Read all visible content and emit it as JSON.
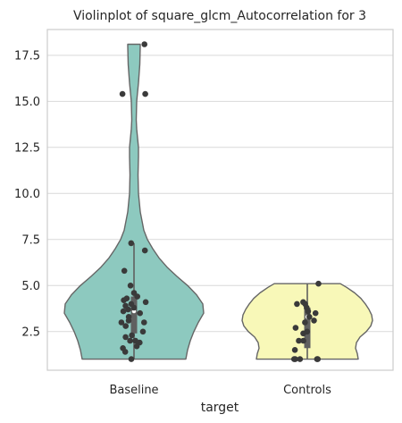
{
  "chart_data": {
    "type": "violin",
    "title": "Violinplot of square_glcm_Autocorrelation for 3",
    "xlabel": "target",
    "ylabel": "",
    "categories": [
      "Baseline",
      "Controls"
    ],
    "ylim": [
      0.4,
      18.9
    ],
    "yticks": [
      2.5,
      5.0,
      7.5,
      10.0,
      12.5,
      15.0,
      17.5
    ],
    "ytick_labels": [
      "2.5",
      "5.0",
      "7.5",
      "10.0",
      "12.5",
      "15.0",
      "17.5"
    ],
    "grid": true,
    "colors": {
      "Baseline": "#8dc9bf",
      "Controls": "#f8f8b8",
      "points": "#3a3a3a",
      "outline": "#666666"
    },
    "series": [
      {
        "name": "Baseline",
        "box": {
          "min": 1.0,
          "q1": 2.4,
          "median": 3.6,
          "q3": 4.4,
          "max": 7.3
        },
        "density": [
          [
            1.0,
            58
          ],
          [
            1.5,
            60
          ],
          [
            2.0,
            63
          ],
          [
            2.5,
            67
          ],
          [
            3.0,
            72
          ],
          [
            3.5,
            78
          ],
          [
            4.0,
            77
          ],
          [
            4.5,
            70
          ],
          [
            5.0,
            60
          ],
          [
            5.5,
            48
          ],
          [
            6.0,
            37
          ],
          [
            6.5,
            28
          ],
          [
            7.0,
            21
          ],
          [
            7.5,
            15
          ],
          [
            8.0,
            11
          ],
          [
            9.0,
            7
          ],
          [
            10.0,
            5
          ],
          [
            11.0,
            4.5
          ],
          [
            12.0,
            5
          ],
          [
            12.5,
            5
          ],
          [
            13.0,
            4
          ],
          [
            13.5,
            3
          ],
          [
            14.0,
            2.5
          ],
          [
            15.0,
            3
          ],
          [
            16.0,
            5
          ],
          [
            17.0,
            6.5
          ],
          [
            18.0,
            7
          ],
          [
            18.1,
            7
          ]
        ],
        "points": [
          18.1,
          15.4,
          15.4,
          7.3,
          6.9,
          5.8,
          5.0,
          4.6,
          4.4,
          4.3,
          4.2,
          4.1,
          4.0,
          3.9,
          3.8,
          3.7,
          3.6,
          3.5,
          3.3,
          3.1,
          3.0,
          3.0,
          2.8,
          2.5,
          2.3,
          2.2,
          2.0,
          2.0,
          1.9,
          1.7,
          1.6,
          1.4,
          1.0
        ]
      },
      {
        "name": "Controls",
        "box": {
          "min": 1.0,
          "q1": 1.6,
          "median": 3.3,
          "q3": 3.8,
          "max": 5.1
        },
        "density": [
          [
            1.0,
            57
          ],
          [
            1.3,
            56
          ],
          [
            1.6,
            54
          ],
          [
            1.9,
            55
          ],
          [
            2.2,
            59
          ],
          [
            2.5,
            66
          ],
          [
            2.8,
            71
          ],
          [
            3.1,
            73
          ],
          [
            3.4,
            72
          ],
          [
            3.7,
            69
          ],
          [
            4.0,
            65
          ],
          [
            4.3,
            60
          ],
          [
            4.6,
            53
          ],
          [
            4.9,
            44
          ],
          [
            5.1,
            37
          ]
        ],
        "points": [
          5.1,
          4.1,
          4.0,
          4.0,
          3.8,
          3.6,
          3.5,
          3.3,
          3.1,
          3.0,
          2.7,
          2.5,
          2.4,
          2.0,
          2.0,
          1.5,
          1.0,
          1.0,
          1.0,
          1.0,
          1.0
        ]
      }
    ]
  }
}
